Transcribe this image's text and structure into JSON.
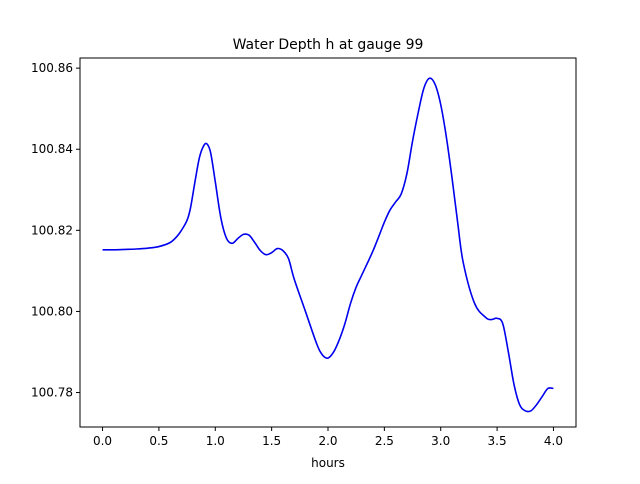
{
  "chart_data": {
    "type": "line",
    "title": "Water Depth h at gauge 99",
    "xlabel": "hours",
    "ylabel": "",
    "xlim": [
      -0.2,
      4.2
    ],
    "ylim": [
      100.7715,
      100.8625
    ],
    "grid": false,
    "x_ticks": [
      0.0,
      0.5,
      1.0,
      1.5,
      2.0,
      2.5,
      3.0,
      3.5,
      4.0
    ],
    "x_tick_labels": [
      "0.0",
      "0.5",
      "1.0",
      "1.5",
      "2.0",
      "2.5",
      "3.0",
      "3.5",
      "4.0"
    ],
    "y_ticks": [
      100.78,
      100.8,
      100.82,
      100.84,
      100.86
    ],
    "y_tick_labels": [
      "100.78",
      "100.80",
      "100.82",
      "100.84",
      "100.86"
    ],
    "series": [
      {
        "color": "#0000ee",
        "x": [
          0.0,
          0.1,
          0.2,
          0.3,
          0.4,
          0.5,
          0.6,
          0.66,
          0.7,
          0.75,
          0.78,
          0.82,
          0.86,
          0.9,
          0.93,
          0.96,
          1.0,
          1.05,
          1.1,
          1.15,
          1.2,
          1.25,
          1.3,
          1.35,
          1.4,
          1.45,
          1.5,
          1.55,
          1.6,
          1.65,
          1.7,
          1.8,
          1.9,
          1.95,
          2.0,
          2.05,
          2.1,
          2.15,
          2.2,
          2.25,
          2.3,
          2.4,
          2.5,
          2.55,
          2.6,
          2.65,
          2.7,
          2.75,
          2.8,
          2.85,
          2.9,
          2.95,
          3.0,
          3.05,
          3.1,
          3.15,
          3.2,
          3.3,
          3.4,
          3.45,
          3.5,
          3.55,
          3.6,
          3.65,
          3.7,
          3.75,
          3.8,
          3.85,
          3.9,
          3.95,
          4.0
        ],
        "y": [
          100.8152,
          100.8152,
          100.8153,
          100.8154,
          100.8156,
          100.816,
          100.817,
          100.8185,
          100.82,
          100.8225,
          100.8255,
          100.832,
          100.838,
          100.841,
          100.8412,
          100.839,
          100.832,
          100.823,
          100.818,
          100.8168,
          100.818,
          100.819,
          100.8188,
          100.817,
          100.815,
          100.814,
          100.8145,
          100.8155,
          100.815,
          100.813,
          100.808,
          100.8,
          100.792,
          100.7893,
          100.7885,
          100.79,
          100.793,
          100.797,
          100.802,
          100.806,
          100.809,
          100.815,
          100.822,
          100.825,
          100.827,
          100.829,
          100.834,
          100.842,
          100.849,
          100.855,
          100.8575,
          100.856,
          100.851,
          100.843,
          100.833,
          100.822,
          100.812,
          100.802,
          100.7985,
          100.798,
          100.7983,
          100.797,
          100.79,
          100.782,
          100.777,
          100.7755,
          100.7755,
          100.777,
          100.779,
          100.781,
          100.781
        ]
      }
    ]
  }
}
